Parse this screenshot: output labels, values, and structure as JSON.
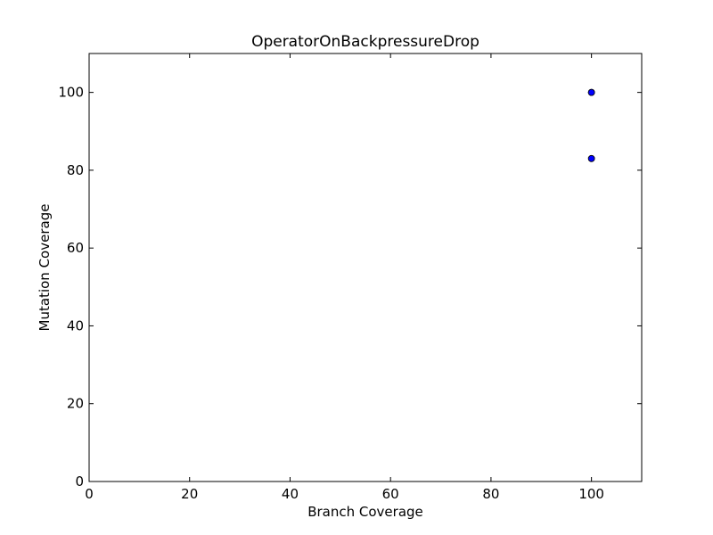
{
  "chart_data": {
    "type": "scatter",
    "title": "OperatorOnBackpressureDrop",
    "xlabel": "Branch Coverage",
    "ylabel": "Mutation Coverage",
    "xlim": [
      0,
      110
    ],
    "ylim": [
      0,
      110
    ],
    "x_ticks": [
      0,
      20,
      40,
      60,
      80,
      100
    ],
    "y_ticks": [
      0,
      20,
      40,
      60,
      80,
      100
    ],
    "grid": false,
    "series": [
      {
        "color": "#0000ff",
        "points": [
          {
            "x": 100,
            "y": 100
          },
          {
            "x": 100,
            "y": 100
          },
          {
            "x": 100,
            "y": 83
          }
        ]
      }
    ]
  }
}
